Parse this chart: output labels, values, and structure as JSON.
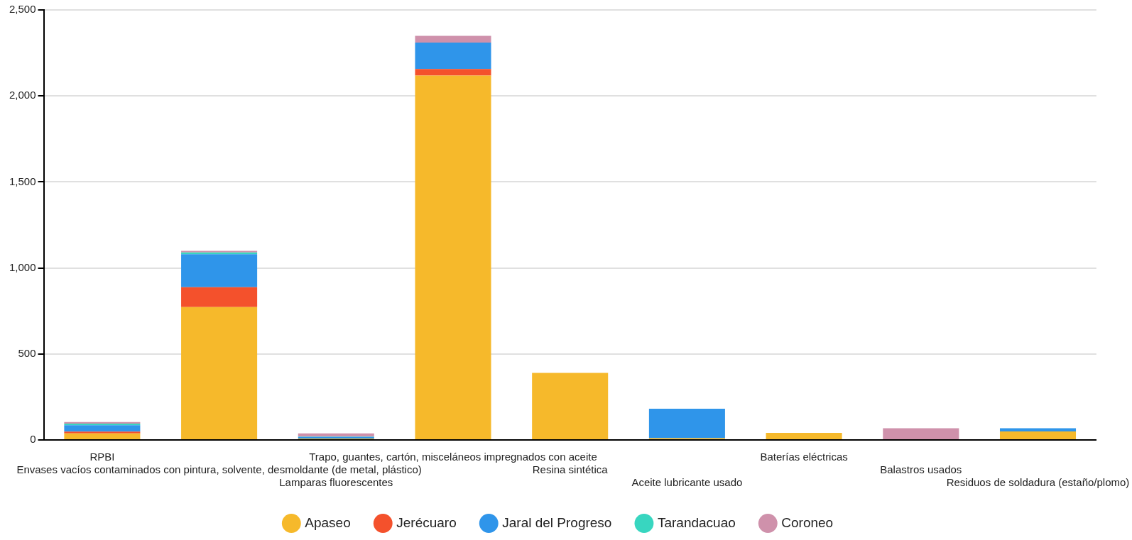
{
  "chart_data": {
    "type": "bar",
    "stacked": true,
    "categories": [
      "RPBI",
      "Envases vacíos contaminados con pintura, solvente, desmoldante (de metal, plástico)",
      "Lamparas fluorescentes",
      "Trapo, guantes, cartón, misceláneos impregnados con aceite",
      "Resina sintética",
      "Aceite lubricante usado",
      "Baterías eléctricas",
      "Balastros usados",
      "Residuos de soldadura (estaño/plomo)"
    ],
    "series": [
      {
        "name": "Apaseo",
        "color": "#f6b92b",
        "values": [
          38,
          773,
          8,
          2118,
          390,
          10,
          41,
          0,
          49
        ]
      },
      {
        "name": "Jerécuaro",
        "color": "#f4512c",
        "values": [
          10,
          115,
          0,
          39,
          0,
          0,
          0,
          0,
          0
        ]
      },
      {
        "name": "Jaral del Progreso",
        "color": "#2f95ea",
        "values": [
          38,
          192,
          10,
          153,
          0,
          172,
          0,
          0,
          19
        ]
      },
      {
        "name": "Tarandacuao",
        "color": "#38d6c0",
        "values": [
          9,
          10,
          2,
          0,
          0,
          0,
          0,
          0,
          0
        ]
      },
      {
        "name": "Coroneo",
        "color": "#cf91ab",
        "values": [
          9,
          9,
          18,
          39,
          0,
          0,
          0,
          68,
          0
        ]
      }
    ],
    "ylim": [
      0,
      2500
    ],
    "yticks": [
      0,
      500,
      {
        "value": 1000,
        "label": "1,000"
      },
      {
        "value": 1500,
        "label": "1,500"
      },
      {
        "value": 2000,
        "label": "2,000"
      },
      {
        "value": 2500,
        "label": "2,500"
      }
    ],
    "grid": "y",
    "legend": "bottom"
  }
}
